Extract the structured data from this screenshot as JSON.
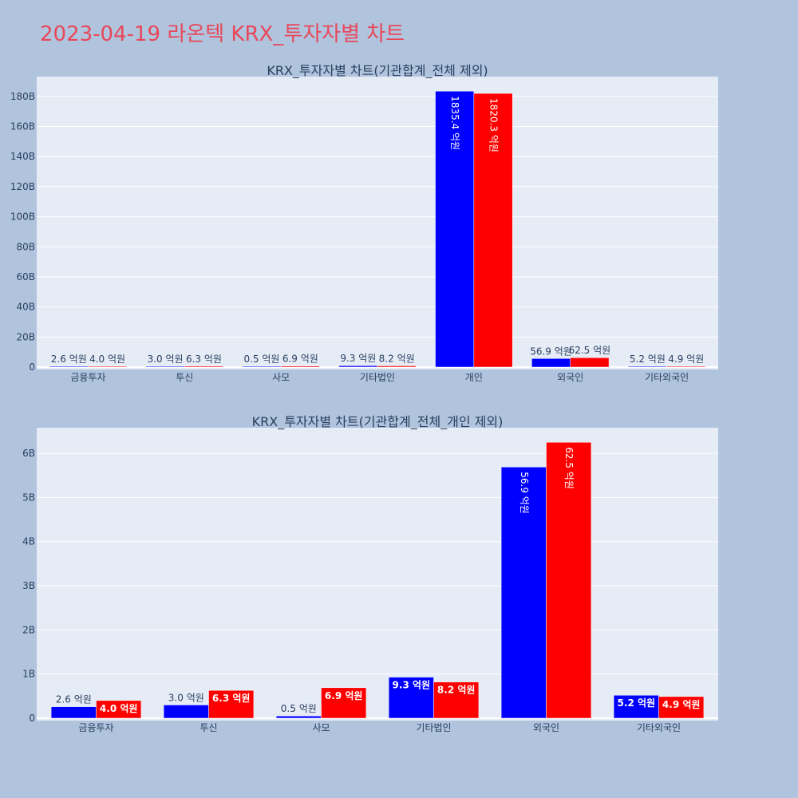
{
  "page": {
    "title": "2023-04-19 라온텍 KRX_투자자별 차트"
  },
  "colors": {
    "buy": "#0000ff",
    "sell": "#ff0000",
    "plot_bg": "#e5ecf6",
    "page_bg": "#b0c4de",
    "title": "#e8485a"
  },
  "chart_data": [
    {
      "type": "bar",
      "title": "KRX_투자자별 차트(기관합계_전체 제외)",
      "categories": [
        "금융투자",
        "투신",
        "사모",
        "기타법인",
        "개인",
        "외국인",
        "기타외국인"
      ],
      "series": [
        {
          "values": [
            0.26,
            0.3,
            0.05,
            0.93,
            183.54,
            5.69,
            0.52
          ]
        },
        {
          "values": [
            0.4,
            0.63,
            0.69,
            0.82,
            182.03,
            6.25,
            0.49
          ]
        }
      ],
      "data_labels": [
        [
          "2.6 억원",
          "3.0 억원",
          "0.5 억원",
          "9.3 억원",
          "1835.4 억원",
          "56.9 억원",
          "5.2 억원"
        ],
        [
          "4.0 억원",
          "6.3 억원",
          "6.9 억원",
          "8.2 억원",
          "1820.3 억원",
          "62.5 억원",
          "4.9 억원"
        ]
      ],
      "yticks": [
        "0",
        "20B",
        "40B",
        "60B",
        "80B",
        "100B",
        "120B",
        "140B",
        "160B",
        "180B"
      ],
      "ytick_values": [
        0,
        20,
        40,
        60,
        80,
        100,
        120,
        140,
        160,
        180
      ],
      "unit": "B",
      "ylim": [
        0,
        193.2
      ],
      "grid": true
    },
    {
      "type": "bar",
      "title": "KRX_투자자별 차트(기관합계_전체_개인 제외)",
      "categories": [
        "금융투자",
        "투신",
        "사모",
        "기타법인",
        "외국인",
        "기타외국인"
      ],
      "series": [
        {
          "values": [
            0.26,
            0.3,
            0.05,
            0.93,
            5.69,
            0.52
          ]
        },
        {
          "values": [
            0.4,
            0.63,
            0.69,
            0.82,
            6.25,
            0.49
          ]
        }
      ],
      "data_labels": [
        [
          "2.6 억원",
          "3.0 억원",
          "0.5 억원",
          "9.3 억원",
          "56.9 억원",
          "5.2 억원"
        ],
        [
          "4.0 억원",
          "6.3 억원",
          "6.9 억원",
          "8.2 억원",
          "62.5 억원",
          "4.9 억원"
        ]
      ],
      "yticks": [
        "0",
        "1B",
        "2B",
        "3B",
        "4B",
        "5B",
        "6B"
      ],
      "ytick_values": [
        0,
        1,
        2,
        3,
        4,
        5,
        6
      ],
      "unit": "B",
      "ylim": [
        0,
        6.58
      ],
      "grid": true
    }
  ]
}
